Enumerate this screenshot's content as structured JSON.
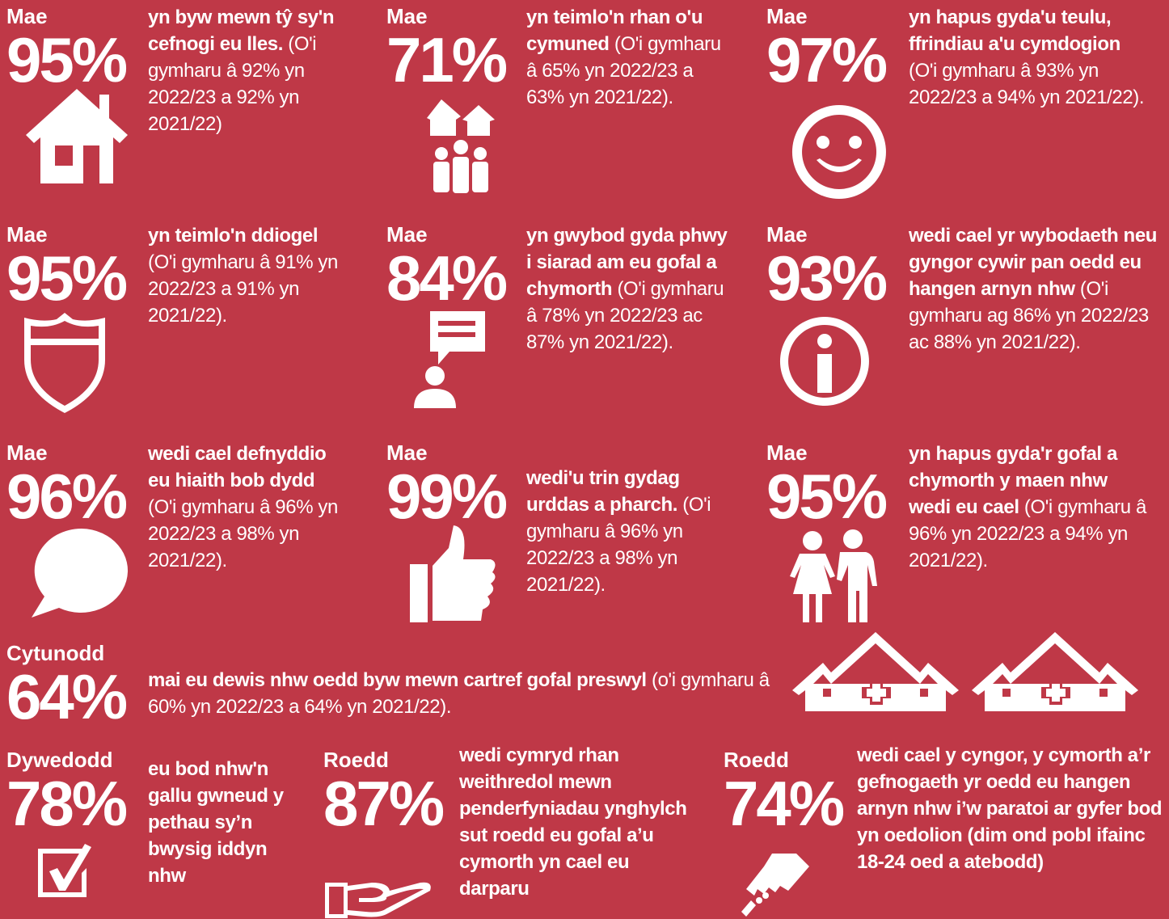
{
  "tiles": [
    {
      "verb": "Mae",
      "percent": "95%",
      "bold": "yn byw mewn tŷ sy'n cefnogi eu lles.",
      "text": "(O'i gymharu â 92% yn 2022/23 a 92% yn 2021/22)"
    },
    {
      "verb": "Mae",
      "percent": "71%",
      "bold": "yn teimlo'n rhan o'u cymuned",
      "text": "(O'i gymharu â 65% yn 2022/23 a 63% yn 2021/22)."
    },
    {
      "verb": "Mae",
      "percent": "97%",
      "bold": "yn hapus gyda'u teulu, ffrindiau a'u cymdogion",
      "text": "(O'i gymharu â 93% yn 2022/23 a 94% yn 2021/22)."
    },
    {
      "verb": "Mae",
      "percent": "95%",
      "bold": "yn teimlo'n ddiogel",
      "text": "(O'i gymharu â 91% yn 2022/23 a 91% yn 2021/22)."
    },
    {
      "verb": "Mae",
      "percent": "84%",
      "bold": "yn gwybod gyda phwy i siarad am eu gofal a chymorth",
      "text": "(O'i gymharu â 78% yn 2022/23 ac 87% yn 2021/22)."
    },
    {
      "verb": "Mae",
      "percent": "93%",
      "bold": "wedi cael yr wybodaeth neu gyngor cywir pan oedd eu hangen arnyn nhw",
      "text": "(O'i gymharu ag 86% yn 2022/23 ac 88% yn 2021/22)."
    },
    {
      "verb": "Mae",
      "percent": "96%",
      "bold": "wedi cael defnyddio eu hiaith bob dydd",
      "text": "(O'i gymharu â 96% yn 2022/23 a 98% yn 2021/22)."
    },
    {
      "verb": "Mae",
      "percent": "99%",
      "bold": "wedi'u trin gydag urddas a pharch.",
      "text": "(O'i gymharu â 96% yn 2022/23 a 98% yn 2021/22)."
    },
    {
      "verb": "Mae",
      "percent": "95%",
      "bold": "yn hapus gyda'r gofal a chymorth y maen nhw wedi eu cael",
      "text": "(O'i gymharu â 96% yn 2022/23 a 94% yn 2021/22)."
    },
    {
      "verb": "Cytunodd",
      "percent": "64%",
      "bold": "mai eu dewis nhw oedd byw mewn cartref gofal preswyl",
      "text": "(o'i gymharu â 60% yn 2022/23 a 64% yn 2021/22)."
    },
    {
      "verb": "Dywedodd",
      "percent": "78%",
      "bold": "eu bod nhw'n gallu gwneud y pethau sy’n bwysig iddyn nhw"
    },
    {
      "verb": "Roedd",
      "percent": "87%",
      "bold": "wedi cymryd rhan weithredol mewn penderfyniadau ynghylch sut roedd eu gofal a’u cymorth yn cael eu darparu"
    },
    {
      "verb": "Roedd",
      "percent": "74%",
      "bold": "wedi cael y cyngor, y cymorth a’r gefnogaeth yr oedd eu hangen arnyn nhw i’w paratoi ar gyfer bod yn oedolion (dim ond pobl ifainc 18-24 oed a atebodd)"
    }
  ]
}
